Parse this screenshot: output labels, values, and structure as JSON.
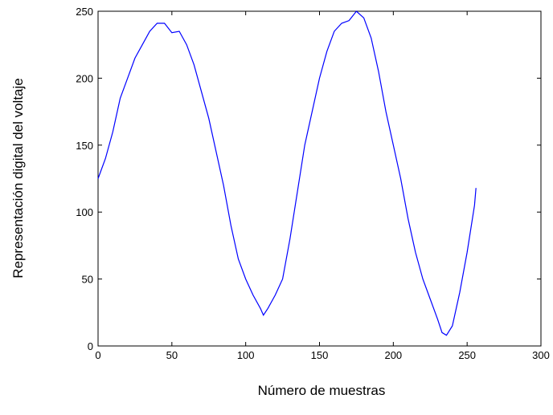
{
  "chart_data": {
    "type": "line",
    "xlabel": "Número de muestras",
    "ylabel": "Representación digital del voltaje",
    "x": [
      0,
      5,
      10,
      15,
      20,
      25,
      30,
      35,
      40,
      45,
      50,
      55,
      60,
      65,
      70,
      75,
      80,
      85,
      90,
      95,
      100,
      105,
      110,
      112,
      115,
      120,
      125,
      130,
      135,
      140,
      145,
      150,
      155,
      160,
      165,
      170,
      175,
      180,
      185,
      190,
      195,
      200,
      205,
      210,
      215,
      220,
      225,
      230,
      233,
      236,
      240,
      245,
      250,
      255,
      256
    ],
    "values": [
      125,
      140,
      160,
      185,
      200,
      215,
      225,
      235,
      241,
      241,
      234,
      235,
      225,
      210,
      190,
      170,
      145,
      120,
      90,
      65,
      50,
      38,
      28,
      23,
      28,
      38,
      50,
      80,
      115,
      150,
      175,
      200,
      220,
      235,
      241,
      243,
      250,
      245,
      230,
      205,
      175,
      150,
      125,
      95,
      70,
      50,
      35,
      20,
      10,
      8,
      15,
      40,
      70,
      105,
      118
    ],
    "color": "#0000ff",
    "xlim": [
      0,
      300
    ],
    "xticks": [
      0,
      50,
      100,
      150,
      200,
      250,
      300
    ],
    "ylim": [
      0,
      250
    ],
    "yticks": [
      0,
      50,
      100,
      150,
      200,
      250
    ]
  }
}
